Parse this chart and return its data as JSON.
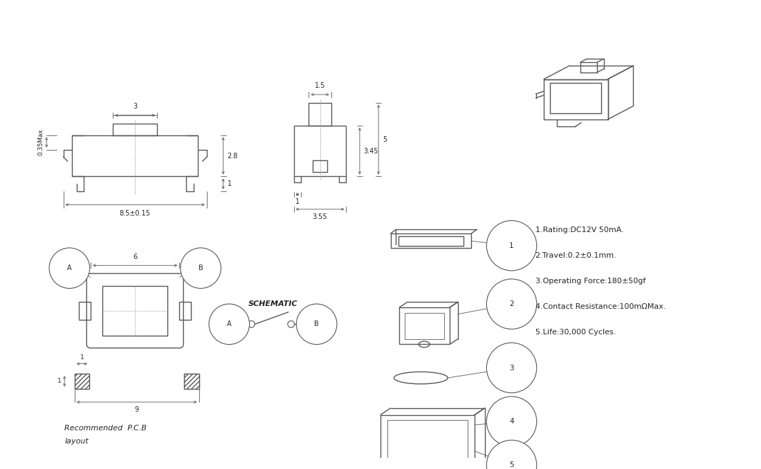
{
  "bg_color": "#ffffff",
  "line_color": "#555555",
  "text_color": "#222222",
  "specs": [
    "1.Rating:DC12V 50mA.",
    "2.Travel:0.2±0.1mm.",
    "3.Operating Force:180±50gf",
    "4.Contact Resistance:100mΩMax.",
    "5.Life:30,000 Cycles."
  ],
  "fig_width": 11.0,
  "fig_height": 6.79
}
